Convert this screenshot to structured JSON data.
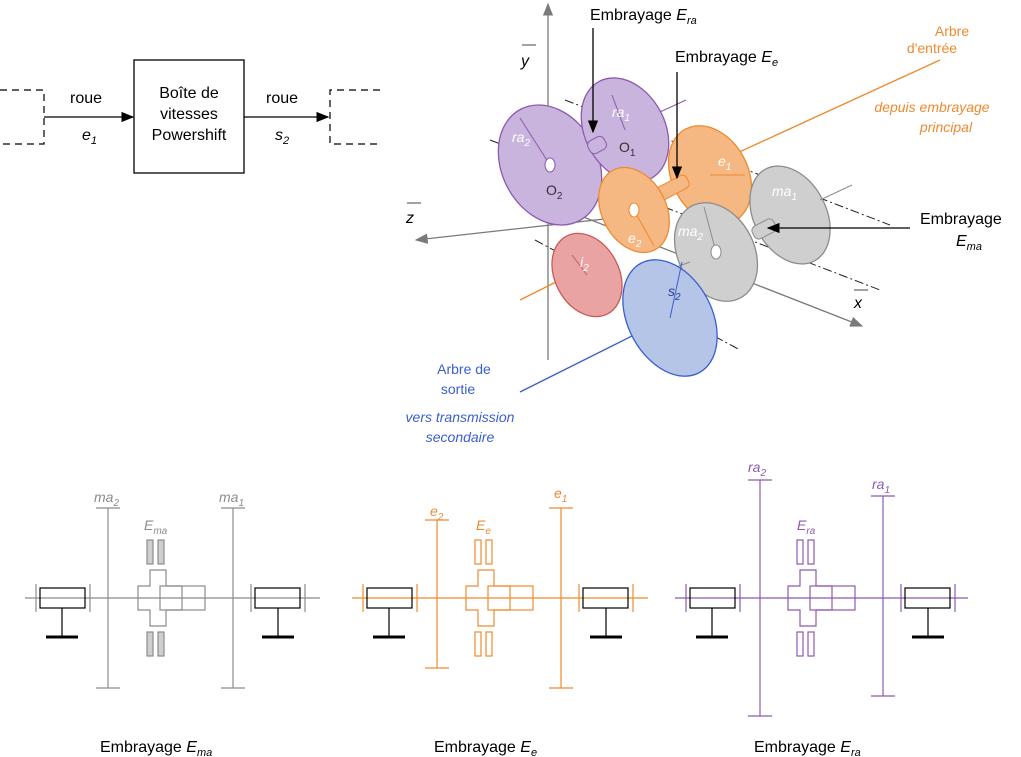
{
  "block": {
    "input_label": "roue",
    "input_var": "e",
    "input_sub": "1",
    "box_line1": "Boîte de",
    "box_line2": "vitesses",
    "box_line3": "Powershift",
    "output_label": "roue",
    "output_var": "s",
    "output_sub": "2"
  },
  "axes": {
    "x": "x",
    "y": "y",
    "z": "z"
  },
  "callouts": {
    "era_text": "Embrayage ",
    "era_var": "E",
    "era_sub": "ra",
    "ee_text": "Embrayage ",
    "ee_var": "E",
    "ee_sub": "e",
    "ema_text": "Embrayage",
    "ema_var": "E",
    "ema_sub": "ma",
    "input_shaft_1": "Arbre",
    "input_shaft_2": "d'entrée",
    "input_from_1": "depuis embrayage",
    "input_from_2": "principal",
    "output_shaft_1": "Arbre de",
    "output_shaft_2": "sortie",
    "output_to_1": "vers transmission",
    "output_to_2": "secondaire"
  },
  "wheels": {
    "ra1": "ra",
    "ra1_sub": "1",
    "ra2": "ra",
    "ra2_sub": "2",
    "o1": "O",
    "o1_sub": "1",
    "o2": "O",
    "o2_sub": "2",
    "e1": "e",
    "e1_sub": "1",
    "e2": "e",
    "e2_sub": "2",
    "ma1": "ma",
    "ma1_sub": "1",
    "ma2": "ma",
    "ma2_sub": "2",
    "i2": "i",
    "i2_sub": "2",
    "s2": "s",
    "s2_sub": "2"
  },
  "schematics": [
    {
      "left": "ma",
      "left_sub": "2",
      "mid": "E",
      "mid_sub": "ma",
      "right": "ma",
      "right_sub": "1",
      "caption": "Embrayage ",
      "cap_var": "E",
      "cap_sub": "ma"
    },
    {
      "left": "e",
      "left_sub": "2",
      "mid": "E",
      "mid_sub": "e",
      "right": "e",
      "right_sub": "1",
      "caption": "Embrayage ",
      "cap_var": "E",
      "cap_sub": "e"
    },
    {
      "left": "ra",
      "left_sub": "2",
      "mid": "E",
      "mid_sub": "ra",
      "right": "ra",
      "right_sub": "1",
      "caption": "Embrayage ",
      "cap_var": "E",
      "cap_sub": "ra"
    }
  ],
  "colors": {
    "gray": "#8c8c8c",
    "orange": "#ee8a2e",
    "purple": "#8c5ab0",
    "blue": "#3a5fcd",
    "red": "#c85a5a"
  }
}
